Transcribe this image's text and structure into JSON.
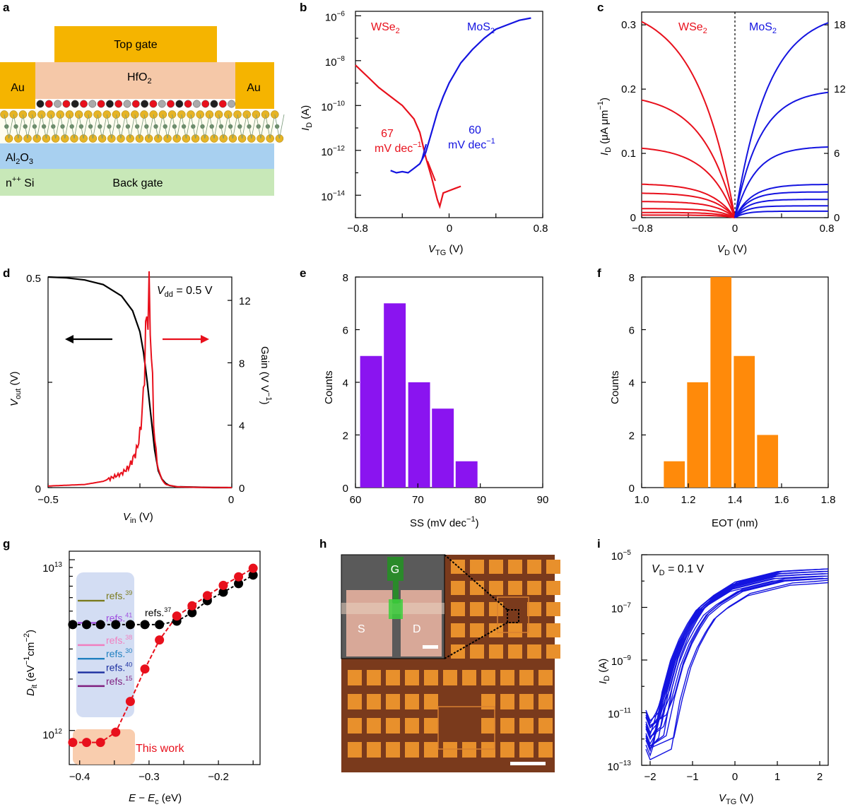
{
  "panels": {
    "a": {
      "letter": "a",
      "top_gate": "Top gate",
      "hfo2": "HfO",
      "hfo2_sub": "2",
      "au_left": "Au",
      "au_right": "Au",
      "al2o3": "Al",
      "al2o3_sub1": "2",
      "al2o3_o": "O",
      "al2o3_sub2": "3",
      "npp": "n",
      "npp_sup": "++",
      "si": " Si",
      "back_gate": "Back gate"
    },
    "b": {
      "letter": "b",
      "wse2": "WSe",
      "wse2_sub": "2",
      "mos2": "MoS",
      "mos2_sub": "2",
      "ss_wse2_num": "67",
      "ss_wse2_unit": "mV dec",
      "ss_mos2_num": "60",
      "ss_mos2_unit": "mV dec",
      "ss_sup": "−1",
      "xticks": [
        "−0.8",
        "0",
        "0.8"
      ],
      "yticks": [
        "10",
        "10",
        "10",
        "10",
        "10"
      ],
      "yexp": [
        "−6",
        "−8",
        "−10",
        "−12",
        "−14"
      ],
      "xlabel": "V",
      "xlabel_sub": "TG",
      "xlabel_unit": " (V)",
      "ylabel": "I",
      "ylabel_sub": "D",
      "ylabel_unit": " (A)"
    },
    "c": {
      "letter": "c",
      "wse2": "WSe",
      "wse2_sub": "2",
      "mos2": "MoS",
      "mos2_sub": "2",
      "xticks": [
        "−0.8",
        "0",
        "0.8"
      ],
      "yticks_left": [
        "0",
        "0.1",
        "0.2",
        "0.3"
      ],
      "yticks_right": [
        "0",
        "6",
        "12",
        "18"
      ],
      "xlabel": "V",
      "xlabel_sub": "D",
      "xlabel_unit": " (V)",
      "ylabel": "I",
      "ylabel_sub": "D",
      "ylabel_unit": " (μA μm",
      "ylabel_sup": "−1",
      "ylabel_close": ")"
    },
    "d": {
      "letter": "d",
      "vdd": "V",
      "vdd_sub": "dd",
      "vdd_val": " = 0.5 V",
      "xticks": [
        "−0.5",
        "0"
      ],
      "yticks_left": [
        "0",
        "0.5"
      ],
      "yticks_right": [
        "0",
        "4",
        "8",
        "12"
      ],
      "xlabel": "V",
      "xlabel_sub": "in",
      "xlabel_unit": " (V)",
      "ylabel": "V",
      "ylabel_sub": "out",
      "ylabel_unit": " (V)",
      "ylabel2": "Gain (V V",
      "ylabel2_sup": "−1",
      "ylabel2_close": ")"
    },
    "e": {
      "letter": "e",
      "xticks": [
        "60",
        "70",
        "80",
        "90"
      ],
      "yticks": [
        "0",
        "2",
        "4",
        "6",
        "8"
      ],
      "xlabel": "SS (mV dec",
      "xlabel_sup": "−1",
      "xlabel_close": ")",
      "ylabel": "Counts"
    },
    "f": {
      "letter": "f",
      "xticks": [
        "1.0",
        "1.2",
        "1.4",
        "1.6",
        "1.8"
      ],
      "yticks": [
        "0",
        "2",
        "4",
        "6",
        "8"
      ],
      "xlabel": "EOT (nm)",
      "ylabel": "Counts"
    },
    "g": {
      "letter": "g",
      "xticks": [
        "−0.4",
        "−0.3",
        "−0.2"
      ],
      "yticks": [
        "10",
        "10"
      ],
      "yexp": [
        "13",
        "12"
      ],
      "refs": [
        {
          "label": "refs.",
          "sup": "39",
          "color": "#7b7b1e"
        },
        {
          "label": "refs.",
          "sup": "41",
          "color": "#a050e0"
        },
        {
          "label": "refs.",
          "sup": "38",
          "color": "#f080c0"
        },
        {
          "label": "refs.",
          "sup": "30",
          "color": "#2080c0"
        },
        {
          "label": "refs.",
          "sup": "40",
          "color": "#1c2fa0"
        },
        {
          "label": "refs.",
          "sup": "15",
          "color": "#802080"
        }
      ],
      "ref37": "refs.",
      "ref37_sup": "37",
      "this_work": "This work",
      "xlabel": "E − E",
      "xlabel_sub": "c",
      "xlabel_unit": " (eV)",
      "ylabel": "D",
      "ylabel_sub": "it",
      "ylabel_unit": " (eV",
      "ylabel_sup": "−1",
      "ylabel_unit2": "cm",
      "ylabel_sup2": "−2",
      "ylabel_close": ")"
    },
    "h": {
      "letter": "h",
      "g": "G",
      "s": "S",
      "d": "D"
    },
    "i": {
      "letter": "i",
      "vd": "V",
      "vd_sub": "D",
      "vd_val": " = 0.1 V",
      "xticks": [
        "−2",
        "−1",
        "0",
        "1",
        "2"
      ],
      "yticks": [
        "10",
        "10",
        "10",
        "10",
        "10"
      ],
      "yexp": [
        "−5",
        "−7",
        "−9",
        "−11",
        "−13"
      ],
      "xlabel": "V",
      "xlabel_sub": "TG",
      "xlabel_unit": " (V)",
      "ylabel": "I",
      "ylabel_sub": "D",
      "ylabel_unit": " (A)"
    }
  },
  "colors": {
    "red": "#e8101c",
    "blue": "#1414e0",
    "purple": "#8a14f0",
    "orange": "#ff8a0a",
    "gold": "#f5b400",
    "hfo": "#f5c8a8",
    "al2o3": "#a8d0f0",
    "si": "#c8e8b8"
  },
  "chart_data": [
    {
      "panel": "b",
      "type": "line",
      "title": "",
      "xlabel": "VTG (V)",
      "ylabel": "ID (A)",
      "xlim": [
        -0.8,
        0.8
      ],
      "ylim_log": [
        -15,
        -5.8
      ],
      "series": [
        {
          "name": "WSe2",
          "color": "#e8101c",
          "x": [
            -0.8,
            -0.7,
            -0.6,
            -0.5,
            -0.4,
            -0.3,
            -0.25,
            -0.2,
            -0.15,
            -0.12,
            -0.1,
            -0.08,
            -0.05,
            0.0,
            0.05,
            0.1
          ],
          "logy": [
            -8.2,
            -8.7,
            -9.2,
            -9.6,
            -10.0,
            -10.6,
            -11.2,
            -12.3,
            -13.2,
            -13.8,
            -14.2,
            -14.5,
            -13.9,
            -13.8,
            -13.7,
            -13.6
          ]
        },
        {
          "name": "MoS2",
          "color": "#1414e0",
          "x": [
            -0.5,
            -0.45,
            -0.4,
            -0.35,
            -0.3,
            -0.25,
            -0.2,
            -0.15,
            -0.1,
            -0.05,
            0.0,
            0.1,
            0.2,
            0.3,
            0.4,
            0.5,
            0.6,
            0.7
          ],
          "logy": [
            -12.9,
            -13.0,
            -12.95,
            -13.0,
            -12.8,
            -12.6,
            -12.1,
            -11.2,
            -10.3,
            -9.6,
            -9.0,
            -8.1,
            -7.5,
            -7.0,
            -6.6,
            -6.4,
            -6.2,
            -6.1
          ]
        }
      ]
    },
    {
      "panel": "c",
      "type": "line",
      "title": "",
      "xlabel": "VD (V)",
      "ylabel": "ID (μA μm−1)",
      "xlim": [
        -0.8,
        0.8
      ],
      "ylim_left": [
        0,
        0.32
      ],
      "ylim_right": [
        0,
        19.2
      ],
      "series": [
        {
          "name": "WSe2",
          "color": "#e8101c",
          "saturation_left_axis": [
            0.305,
            0.183,
            0.108,
            0.052,
            0.038,
            0.025,
            0.014,
            0.008,
            0.004
          ]
        },
        {
          "name": "MoS2",
          "color": "#1414e0",
          "saturation_right_axis": [
            18.2,
            11.7,
            6.6,
            3.1,
            2.4,
            1.7,
            1.1,
            0.6
          ]
        }
      ]
    },
    {
      "panel": "d",
      "type": "line",
      "title": "",
      "xlabel": "Vin (V)",
      "ylabel": "Vout (V)",
      "ylabel_right": "Gain (V V−1)",
      "xlim": [
        -0.5,
        0
      ],
      "ylim_left": [
        0,
        0.5
      ],
      "ylim_right": [
        0,
        13.5
      ],
      "annotations": [
        "Vdd = 0.5 V"
      ],
      "series": [
        {
          "name": "Vout",
          "color": "#000000",
          "x": [
            -0.5,
            -0.45,
            -0.4,
            -0.35,
            -0.3,
            -0.27,
            -0.25,
            -0.24,
            -0.23,
            -0.22,
            -0.21,
            -0.2,
            -0.19,
            -0.18,
            -0.17,
            -0.15,
            -0.1,
            -0.05,
            0.0
          ],
          "y": [
            0.5,
            0.498,
            0.493,
            0.482,
            0.455,
            0.42,
            0.37,
            0.32,
            0.25,
            0.17,
            0.09,
            0.04,
            0.02,
            0.01,
            0.005,
            0.002,
            0.001,
            0.0,
            0.0
          ]
        },
        {
          "name": "Gain",
          "color": "#e8101c",
          "x": [
            -0.5,
            -0.4,
            -0.35,
            -0.3,
            -0.28,
            -0.26,
            -0.25,
            -0.24,
            -0.235,
            -0.23,
            -0.225,
            -0.22,
            -0.215,
            -0.21,
            -0.2,
            -0.19,
            -0.18,
            -0.15,
            -0.1,
            0.0
          ],
          "y": [
            0.1,
            0.2,
            0.4,
            0.9,
            1.3,
            2.3,
            3.4,
            6.0,
            9.5,
            11.2,
            12.1,
            9.6,
            6.0,
            3.0,
            1.2,
            0.5,
            0.2,
            0.05,
            0.02,
            0.0
          ]
        }
      ]
    },
    {
      "panel": "e",
      "type": "bar",
      "title": "",
      "xlabel": "SS (mV dec−1)",
      "ylabel": "Counts",
      "xlim": [
        60,
        90
      ],
      "ylim": [
        0,
        8
      ],
      "bar_color": "#8a14f0",
      "bin_centers": [
        62.5,
        66.3,
        70.2,
        74.0,
        77.8
      ],
      "bin_width": 3.5,
      "values": [
        5,
        7,
        4,
        3,
        1
      ]
    },
    {
      "panel": "f",
      "type": "bar",
      "title": "",
      "xlabel": "EOT (nm)",
      "ylabel": "Counts",
      "xlim": [
        1.0,
        1.8
      ],
      "ylim": [
        0,
        8
      ],
      "bar_color": "#ff8a0a",
      "bin_centers": [
        1.14,
        1.24,
        1.34,
        1.44,
        1.54
      ],
      "bin_width": 0.09,
      "values": [
        1,
        4,
        8,
        5,
        2
      ]
    },
    {
      "panel": "g",
      "type": "scatter",
      "title": "",
      "xlabel": "E − Ec (eV)",
      "ylabel": "Dit (eV−1cm−2)",
      "xlim": [
        -0.415,
        -0.14
      ],
      "ylim_log": [
        11.8,
        13.05
      ],
      "series": [
        {
          "name": "This work",
          "color": "#e8101c",
          "x": [
            -0.41,
            -0.39,
            -0.37,
            -0.348,
            -0.327,
            -0.306,
            -0.285,
            -0.26,
            -0.238,
            -0.216,
            -0.193,
            -0.171,
            -0.15
          ],
          "logy": [
            11.93,
            11.93,
            11.93,
            11.99,
            12.17,
            12.36,
            12.53,
            12.67,
            12.73,
            12.79,
            12.85,
            12.9,
            12.95
          ]
        },
        {
          "name": "refs.37",
          "color": "#000000",
          "x": [
            -0.41,
            -0.39,
            -0.37,
            -0.348,
            -0.327,
            -0.306,
            -0.285,
            -0.26,
            -0.238,
            -0.216,
            -0.193,
            -0.171,
            -0.15
          ],
          "logy": [
            12.62,
            12.62,
            12.62,
            12.62,
            12.62,
            12.62,
            12.62,
            12.64,
            12.69,
            12.76,
            12.81,
            12.86,
            12.91
          ]
        }
      ],
      "reference_lines": [
        {
          "name": "refs.39",
          "logy": 12.76
        },
        {
          "name": "refs.41",
          "logy": 12.63
        },
        {
          "name": "refs.38",
          "logy": 12.5
        },
        {
          "name": "refs.30",
          "logy": 12.42
        },
        {
          "name": "refs.40",
          "logy": 12.34
        },
        {
          "name": "refs.15",
          "logy": 12.26
        }
      ]
    },
    {
      "panel": "i",
      "type": "line",
      "title": "",
      "xlabel": "VTG (V)",
      "ylabel": "ID (A)",
      "xlim": [
        -2.2,
        2.2
      ],
      "ylim_log": [
        -13,
        -5
      ],
      "annotations": [
        "VD = 0.1 V"
      ],
      "series_description": "~20 transfer curves",
      "representative": {
        "x": [
          -2.1,
          -2.0,
          -1.8,
          -1.6,
          -1.4,
          -1.2,
          -1.0,
          -0.8,
          -0.5,
          0.0,
          0.5,
          1.0,
          1.5,
          2.2
        ],
        "logy": [
          -11.5,
          -11.9,
          -11.5,
          -10.2,
          -9.0,
          -8.2,
          -7.6,
          -7.1,
          -6.7,
          -6.2,
          -6.0,
          -5.8,
          -5.75,
          -5.7
        ]
      }
    }
  ]
}
